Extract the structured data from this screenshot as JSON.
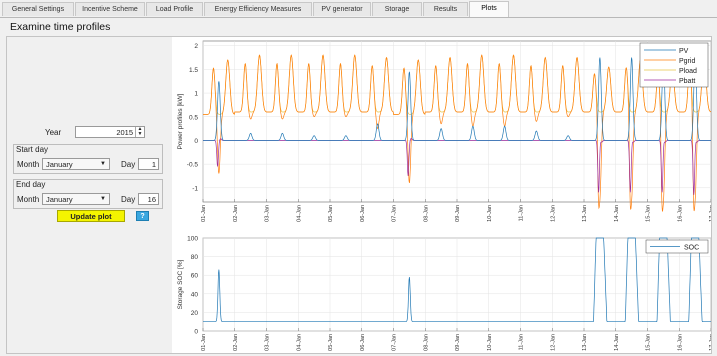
{
  "tabs": [
    {
      "label": "General Settings"
    },
    {
      "label": "Incentive Scheme"
    },
    {
      "label": "Load Profile"
    },
    {
      "label": "Energy Efficiency Measures"
    },
    {
      "label": "PV generator"
    },
    {
      "label": "Storage"
    },
    {
      "label": "Results"
    },
    {
      "label": "Plots",
      "active": true
    }
  ],
  "title": "Examine time profiles",
  "controls": {
    "year_label": "Year",
    "year_value": "2015",
    "start_group": "Start day",
    "end_group": "End day",
    "month_label": "Month",
    "day_label": "Day",
    "start_month": "January",
    "start_day": "1",
    "end_month": "January",
    "end_day": "16",
    "update_label": "Update plot",
    "help_label": "?"
  },
  "chart_data": [
    {
      "type": "line",
      "ylabel": "Power profiles [kW]",
      "ylim": [
        -1.3,
        2.1
      ],
      "yticks": [
        -1,
        -0.5,
        0,
        0.5,
        1,
        1.5,
        2
      ],
      "xlim": [
        0,
        16
      ],
      "x_tick_labels": [
        "01-Jan",
        "02-Jan",
        "03-Jan",
        "04-Jan",
        "05-Jan",
        "06-Jan",
        "07-Jan",
        "08-Jan",
        "09-Jan",
        "10-Jan",
        "11-Jan",
        "12-Jan",
        "13-Jan",
        "14-Jan",
        "15-Jan",
        "16-Jan",
        "17-Jan"
      ],
      "legend": "top-right",
      "series": [
        {
          "name": "PV",
          "color": "#1f77b4",
          "daily_peak": [
            1.25,
            0.15,
            0.15,
            0.1,
            0.1,
            0.35,
            1.45,
            0.25,
            0.3,
            0.3,
            0.2,
            0.1,
            1.75,
            1.75,
            1.8,
            1.75
          ]
        },
        {
          "name": "Pgrid",
          "color": "#ff7f0e",
          "daily_peak": [
            1.7,
            1.8,
            1.8,
            1.8,
            1.8,
            1.75,
            1.7,
            1.75,
            1.8,
            1.8,
            1.75,
            1.75,
            1.55,
            1.7,
            1.5,
            1.8
          ],
          "daily_base": [
            0.55,
            0.6,
            0.6,
            0.6,
            0.6,
            0.6,
            0.55,
            0.6,
            0.6,
            0.6,
            0.6,
            0.6,
            0.6,
            0.6,
            0.6,
            0.6
          ],
          "daily_dip": [
            0,
            0,
            0,
            0,
            0,
            0,
            0,
            0,
            0,
            0,
            0,
            0,
            -1.05,
            -1.1,
            -1.1,
            -1.15
          ]
        },
        {
          "name": "Pload",
          "color": "#e8c547"
        },
        {
          "name": "Pbatt",
          "color": "#9b2a9b",
          "daily_dip": [
            -0.55,
            0,
            0,
            0,
            0,
            0,
            -0.75,
            0,
            0,
            0,
            0,
            0,
            -1.1,
            -1.1,
            -1.1,
            -1.15
          ]
        }
      ]
    },
    {
      "type": "line",
      "ylabel": "Storage SOC [%]",
      "ylim": [
        0,
        100
      ],
      "yticks": [
        0,
        20,
        40,
        60,
        80,
        100
      ],
      "xlim": [
        0,
        16
      ],
      "x_tick_labels": [
        "01-Jan",
        "02-Jan",
        "03-Jan",
        "04-Jan",
        "05-Jan",
        "06-Jan",
        "07-Jan",
        "08-Jan",
        "09-Jan",
        "10-Jan",
        "11-Jan",
        "12-Jan",
        "13-Jan",
        "14-Jan",
        "15-Jan",
        "16-Jan",
        "17-Jan"
      ],
      "legend": "top-right",
      "series": [
        {
          "name": "SOC",
          "color": "#1f77b4",
          "baseline": 10,
          "daily_peak": [
            66,
            10,
            10,
            10,
            10,
            10,
            58,
            10,
            10,
            10,
            10,
            10,
            100,
            100,
            100,
            100
          ]
        }
      ]
    }
  ]
}
